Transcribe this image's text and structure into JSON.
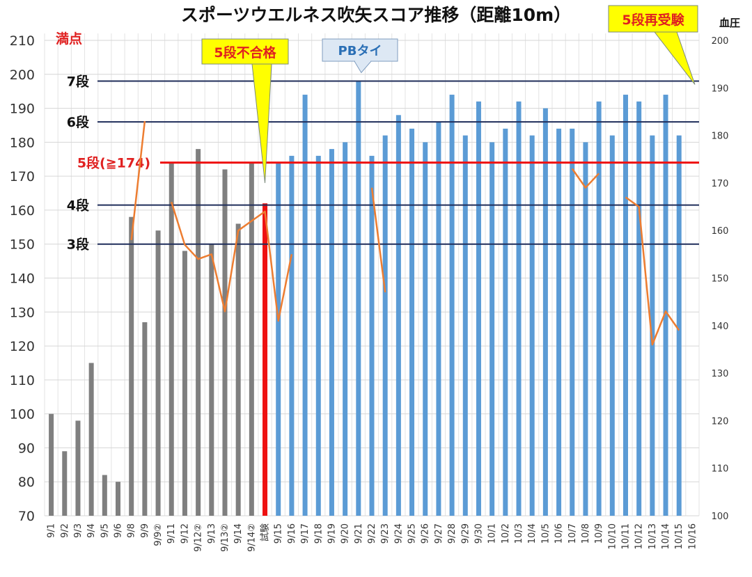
{
  "chart_data": {
    "type": "bar",
    "title": "スポーツウエルネス吹矢スコア推移（距離10m）",
    "ylabel_right": "血圧",
    "ylim_left": [
      70,
      210
    ],
    "ylim_right": [
      100,
      200
    ],
    "yticks_left": [
      "210",
      "200",
      "190",
      "180",
      "170",
      "160",
      "150",
      "140",
      "130",
      "120",
      "110",
      "100",
      "90",
      "80",
      "70"
    ],
    "yticks_right": [
      "200",
      "190",
      "180",
      "170",
      "160",
      "150",
      "140",
      "130",
      "120",
      "110",
      "100"
    ],
    "categories": [
      "9/1",
      "9/2",
      "9/3",
      "9/4",
      "9/5",
      "9/6",
      "9/8",
      "9/9",
      "9/9②",
      "9/11",
      "9/12",
      "9/12②",
      "9/13",
      "9/13②",
      "9/14",
      "9/14②",
      "試験",
      "9/15",
      "9/16",
      "9/17",
      "9/18",
      "9/19",
      "9/20",
      "9/21",
      "9/22",
      "9/23",
      "9/24",
      "9/25",
      "9/26",
      "9/27",
      "9/28",
      "9/29",
      "9/30",
      "10/1",
      "10/2",
      "10/3",
      "10/4",
      "10/5",
      "10/6",
      "10/7",
      "10/8",
      "10/9",
      "10/10",
      "10/11",
      "10/12",
      "10/13",
      "10/14",
      "10/15",
      "10/16"
    ],
    "series": [
      {
        "name": "スコア",
        "values": [
          100,
          89,
          98,
          115,
          82,
          80,
          158,
          127,
          154,
          174,
          148,
          178,
          150,
          172,
          156,
          174,
          162,
          174,
          176,
          194,
          176,
          178,
          180,
          198,
          176,
          182,
          188,
          184,
          180,
          186,
          194,
          182,
          192,
          180,
          184,
          192,
          182,
          190,
          184,
          184,
          180,
          192,
          182,
          194,
          192,
          182,
          194,
          182,
          null
        ],
        "colors": [
          "#7f7f7f",
          "#7f7f7f",
          "#7f7f7f",
          "#7f7f7f",
          "#7f7f7f",
          "#7f7f7f",
          "#7f7f7f",
          "#7f7f7f",
          "#7f7f7f",
          "#7f7f7f",
          "#7f7f7f",
          "#7f7f7f",
          "#7f7f7f",
          "#7f7f7f",
          "#7f7f7f",
          "#7f7f7f",
          "#ee1111",
          "#5b9bd5",
          "#5b9bd5",
          "#5b9bd5",
          "#5b9bd5",
          "#5b9bd5",
          "#5b9bd5",
          "#5b9bd5",
          "#5b9bd5",
          "#5b9bd5",
          "#5b9bd5",
          "#5b9bd5",
          "#5b9bd5",
          "#5b9bd5",
          "#5b9bd5",
          "#5b9bd5",
          "#5b9bd5",
          "#5b9bd5",
          "#5b9bd5",
          "#5b9bd5",
          "#5b9bd5",
          "#5b9bd5",
          "#5b9bd5",
          "#5b9bd5",
          "#5b9bd5",
          "#5b9bd5",
          "#5b9bd5",
          "#5b9bd5",
          "#5b9bd5",
          "#5b9bd5",
          "#5b9bd5",
          "#5b9bd5",
          ""
        ]
      },
      {
        "name": "血圧",
        "axis": "right",
        "color": "#ed7d31",
        "values": [
          null,
          null,
          null,
          null,
          null,
          null,
          158,
          183,
          null,
          166,
          157,
          154,
          155,
          143,
          160,
          162,
          164,
          141,
          155,
          null,
          null,
          null,
          null,
          null,
          169,
          147,
          null,
          null,
          null,
          null,
          null,
          null,
          null,
          null,
          null,
          null,
          null,
          null,
          null,
          173,
          169,
          172,
          null,
          167,
          165,
          136,
          143,
          139,
          null
        ]
      }
    ],
    "reference_lines": [
      {
        "label": "7段",
        "value": 198,
        "color": "#1f2d5a"
      },
      {
        "label": "6段",
        "value": 186,
        "color": "#1f2d5a"
      },
      {
        "label": "5段(≧174)",
        "value": 174,
        "color": "#ee1111"
      },
      {
        "label": "4段",
        "value": 161.5,
        "color": "#1f2d5a"
      },
      {
        "label": "3段",
        "value": 150,
        "color": "#1f2d5a"
      }
    ],
    "full_score_label": "満点",
    "callouts": [
      "5段不合格",
      "PBタイ",
      "5段再受験"
    ],
    "grid": true
  }
}
